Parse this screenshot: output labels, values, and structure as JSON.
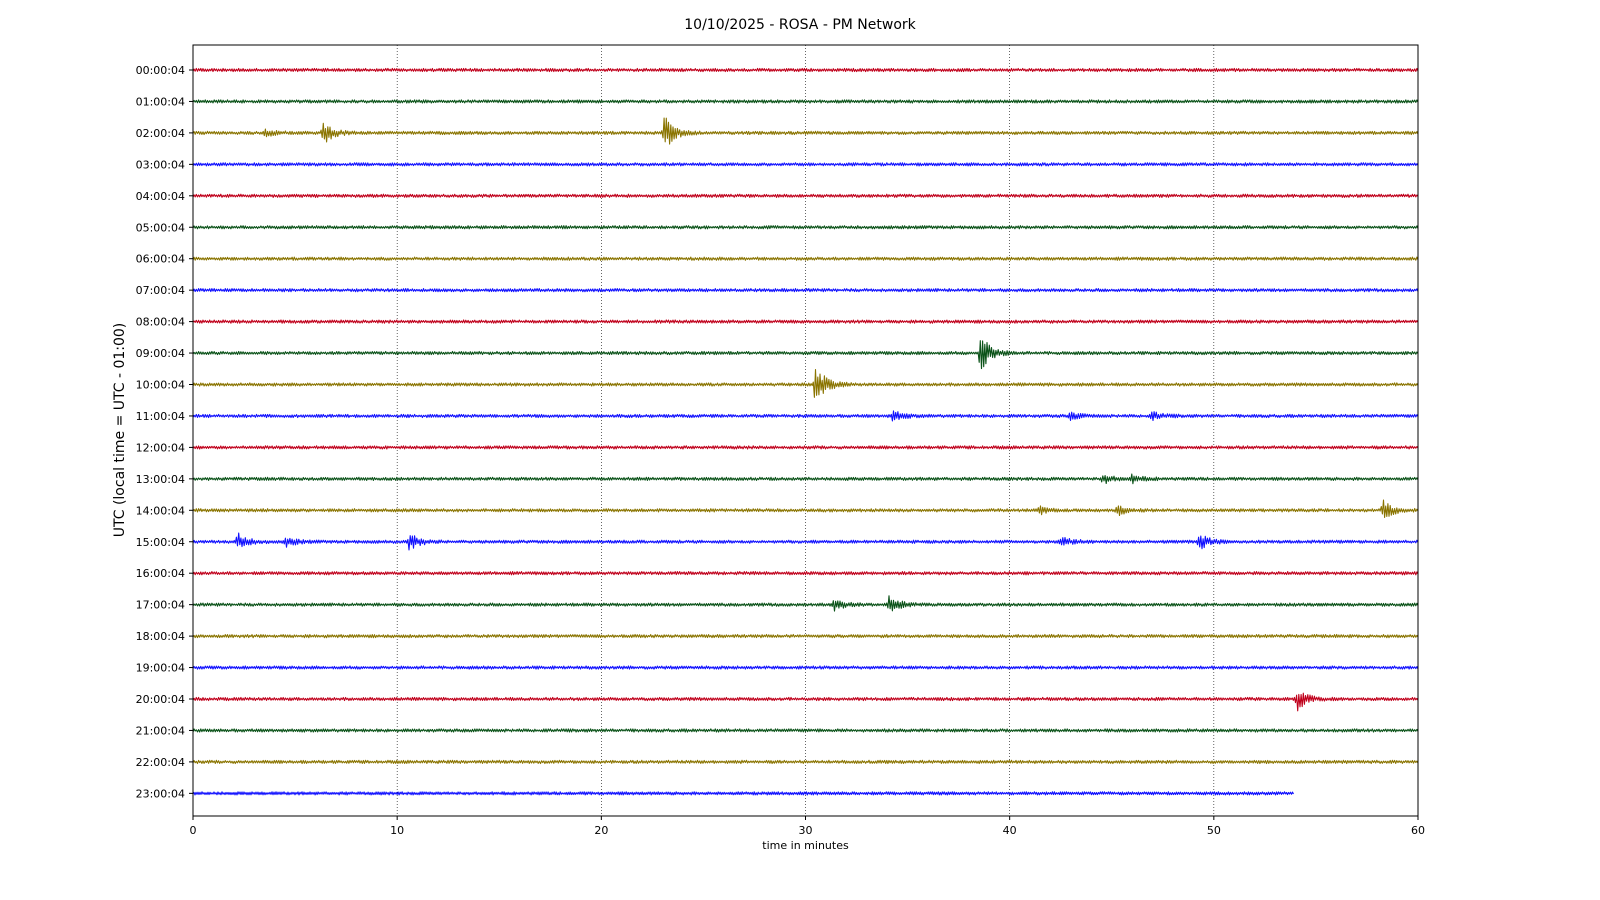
{
  "chart_data": {
    "type": "line",
    "title": "10/10/2025 - ROSA - PM Network",
    "xlabel": "time in minutes",
    "ylabel": "UTC (local time = UTC - 01:00)",
    "xlim": [
      0,
      60
    ],
    "x_ticks": [
      0,
      10,
      20,
      30,
      40,
      50,
      60
    ],
    "x_tick_labels": [
      "0",
      "10",
      "20",
      "30",
      "40",
      "50",
      "60"
    ],
    "grid": "vertical dotted lines at x ticks",
    "trace_colors": [
      "#c0001b",
      "#0a5218",
      "#8a7400",
      "#1010ff"
    ],
    "series": [
      {
        "label": "00:00:04",
        "end_minute": 60,
        "events": []
      },
      {
        "label": "01:00:04",
        "end_minute": 60,
        "events": []
      },
      {
        "label": "02:00:04",
        "end_minute": 60,
        "events": [
          {
            "minute": 3.5,
            "amplitude": 0.2
          },
          {
            "minute": 6.4,
            "amplitude": 0.6
          },
          {
            "minute": 23.1,
            "amplitude": 1.0
          }
        ]
      },
      {
        "label": "03:00:04",
        "end_minute": 60,
        "events": []
      },
      {
        "label": "04:00:04",
        "end_minute": 60,
        "events": []
      },
      {
        "label": "05:00:04",
        "end_minute": 60,
        "events": []
      },
      {
        "label": "06:00:04",
        "end_minute": 60,
        "events": []
      },
      {
        "label": "07:00:04",
        "end_minute": 60,
        "events": []
      },
      {
        "label": "08:00:04",
        "end_minute": 60,
        "events": []
      },
      {
        "label": "09:00:04",
        "end_minute": 60,
        "events": [
          {
            "minute": 38.6,
            "amplitude": 1.2
          }
        ]
      },
      {
        "label": "10:00:04",
        "end_minute": 60,
        "events": [
          {
            "minute": 30.5,
            "amplitude": 1.2
          }
        ]
      },
      {
        "label": "11:00:04",
        "end_minute": 60,
        "events": [
          {
            "minute": 34.3,
            "amplitude": 0.3
          },
          {
            "minute": 43.0,
            "amplitude": 0.2
          },
          {
            "minute": 47.0,
            "amplitude": 0.2
          }
        ]
      },
      {
        "label": "12:00:04",
        "end_minute": 60,
        "events": []
      },
      {
        "label": "13:00:04",
        "end_minute": 60,
        "events": [
          {
            "minute": 44.6,
            "amplitude": 0.25
          },
          {
            "minute": 46.0,
            "amplitude": 0.2
          }
        ]
      },
      {
        "label": "14:00:04",
        "end_minute": 60,
        "events": [
          {
            "minute": 41.5,
            "amplitude": 0.2
          },
          {
            "minute": 45.3,
            "amplitude": 0.25
          },
          {
            "minute": 58.3,
            "amplitude": 0.5
          }
        ]
      },
      {
        "label": "15:00:04",
        "end_minute": 60,
        "events": [
          {
            "minute": 2.2,
            "amplitude": 0.45
          },
          {
            "minute": 4.6,
            "amplitude": 0.25
          },
          {
            "minute": 10.6,
            "amplitude": 0.45
          },
          {
            "minute": 42.5,
            "amplitude": 0.3
          },
          {
            "minute": 49.3,
            "amplitude": 0.45
          }
        ]
      },
      {
        "label": "16:00:04",
        "end_minute": 60,
        "events": []
      },
      {
        "label": "17:00:04",
        "end_minute": 60,
        "events": [
          {
            "minute": 31.4,
            "amplitude": 0.3
          },
          {
            "minute": 34.1,
            "amplitude": 0.5
          }
        ]
      },
      {
        "label": "18:00:04",
        "end_minute": 60,
        "events": []
      },
      {
        "label": "19:00:04",
        "end_minute": 60,
        "events": []
      },
      {
        "label": "20:00:04",
        "end_minute": 60,
        "events": [
          {
            "minute": 54.1,
            "amplitude": 0.6
          }
        ]
      },
      {
        "label": "21:00:04",
        "end_minute": 60,
        "events": []
      },
      {
        "label": "22:00:04",
        "end_minute": 60,
        "events": []
      },
      {
        "label": "23:00:04",
        "end_minute": 53.9,
        "events": []
      }
    ]
  }
}
